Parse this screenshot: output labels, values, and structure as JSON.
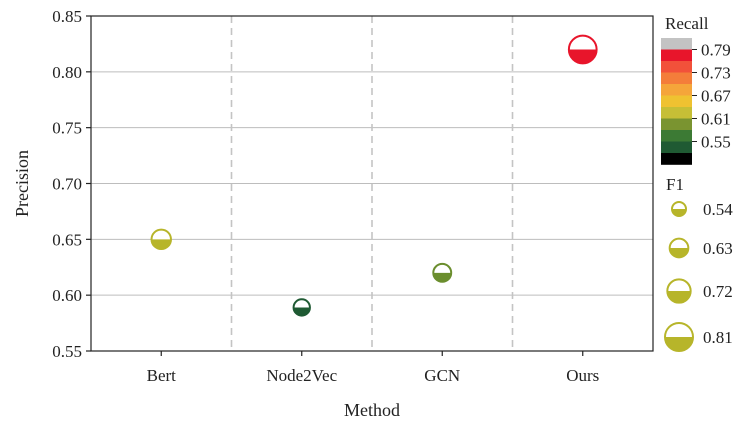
{
  "chart_data": {
    "type": "scatter",
    "title": "",
    "xlabel": "Method",
    "ylabel": "Precision",
    "categories": [
      "Bert",
      "Node2Vec",
      "GCN",
      "Ours"
    ],
    "ylim": [
      0.55,
      0.85
    ],
    "yticks": [
      "0.55",
      "0.60",
      "0.65",
      "0.70",
      "0.75",
      "0.80",
      "0.85"
    ],
    "grid": "horizontal lines at y ticks, dashed vertical separators between categories",
    "points": [
      {
        "method": "Bert",
        "precision": 0.65,
        "recall": 0.64,
        "f1": 0.645,
        "color": "#b7b52a"
      },
      {
        "method": "Node2Vec",
        "precision": 0.589,
        "recall": 0.58,
        "f1": 0.585,
        "color": "#1f5a33"
      },
      {
        "method": "GCN",
        "precision": 0.62,
        "recall": 0.61,
        "f1": 0.615,
        "color": "#6b8e2e"
      },
      {
        "method": "Ours",
        "precision": 0.82,
        "recall": 0.79,
        "f1": 0.805,
        "color": "#e8152b"
      }
    ],
    "recall_legend": {
      "title": "Recall",
      "labels": [
        "0.79",
        "0.73",
        "0.67",
        "0.61",
        "0.55"
      ],
      "bands": [
        "#c3c3c3",
        "#e8152b",
        "#f2513a",
        "#f47d3a",
        "#f5a53a",
        "#efc231",
        "#c6bf36",
        "#7a9430",
        "#3c7a34",
        "#1f5a33",
        "#000000"
      ]
    },
    "f1_legend": {
      "title": "F1",
      "entries": [
        {
          "label": "0.54",
          "value": 0.54
        },
        {
          "label": "0.63",
          "value": 0.63
        },
        {
          "label": "0.72",
          "value": 0.72
        },
        {
          "label": "0.81",
          "value": 0.81
        }
      ],
      "color": "#b7b52a"
    }
  }
}
